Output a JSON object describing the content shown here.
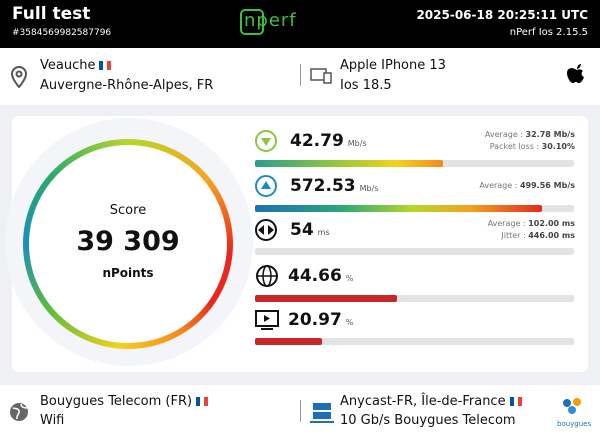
{
  "header": {
    "title": "Full test",
    "test_id": "#3584569982587796",
    "logo": "nperf",
    "datetime": "2025-06-18 20:25:11 UTC",
    "app_version": "nPerf Ios 2.15.5"
  },
  "location": {
    "city": "Veauche",
    "region": "Auvergne-Rhône-Alpes, FR"
  },
  "device": {
    "model": "Apple IPhone 13",
    "os": "Ios 18.5"
  },
  "score": {
    "label": "Score",
    "value": "39 309",
    "unit": "nPoints"
  },
  "metrics": {
    "download": {
      "value": 42.79,
      "unit": "Mb/s",
      "average_label": "Average :",
      "average": "32.78 Mb/s",
      "packet_loss_label": "Packet loss :",
      "packet_loss": "30.10%",
      "bar": 59
    },
    "upload": {
      "value": 572.53,
      "unit": "Mb/s",
      "average_label": "Average :",
      "average": "499.56 Mb/s",
      "bar": 90
    },
    "latency": {
      "value": 54,
      "unit": "ms",
      "average_label": "Average :",
      "average": "102.00 ms",
      "jitter_label": "Jitter :",
      "jitter": "446.00 ms"
    },
    "web": {
      "value": 44.66,
      "unit": "%"
    },
    "video": {
      "value": 20.97,
      "unit": "%"
    }
  },
  "provider": {
    "name": "Bouygues Telecom (FR)",
    "connection": "Wifi",
    "logo": "bouygues"
  },
  "server": {
    "name": "Anycast-FR, Île-de-France",
    "bandwidth": "10 Gb/s Bouygues Telecom"
  }
}
